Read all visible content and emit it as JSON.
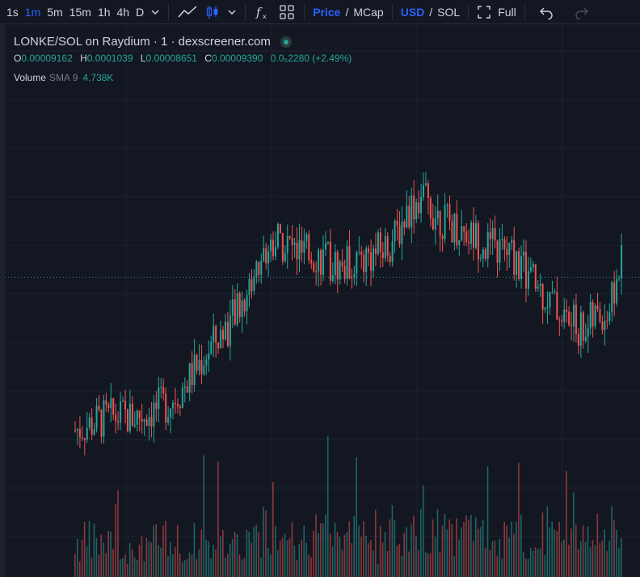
{
  "toolbar": {
    "intervals": [
      "1s",
      "1m",
      "5m",
      "15m",
      "1h",
      "4h",
      "D"
    ],
    "active_interval": "1m",
    "price_label": "Price",
    "mcap_label": "MCap",
    "usd_label": "USD",
    "sol_label": "SOL",
    "full_label": "Full"
  },
  "legend": {
    "title": "LONKE/SOL on Raydium · 1 · dexscreener.com",
    "open_key": "O",
    "open": "0.00009162",
    "high_key": "H",
    "high": "0.0001039",
    "low_key": "L",
    "low": "0.00008651",
    "close_key": "C",
    "close": "0.00009390",
    "change": "0.0₅2280 (+2.49%)"
  },
  "volume": {
    "label": "Volume",
    "sma": "SMA 9",
    "value": "4.738K"
  },
  "colors": {
    "up": "#26a69a",
    "down": "#ef5350",
    "background": "#131722",
    "accent": "#2962ff"
  },
  "chart_data": {
    "type": "candlestick",
    "series": [
      {
        "name": "LONKE/SOL",
        "values": [
          7.56e-05,
          7.62e-05,
          7.68e-05,
          7.71e-05,
          7.7e-05,
          7.73e-05,
          7.79e-05,
          7.86e-05,
          8.01e-05,
          8.22e-05,
          8.44e-05,
          8.62e-05,
          8.8e-05,
          9.11e-05,
          9.42e-05,
          9.68e-05,
          9.58e-05,
          9.47e-05,
          9.49e-05,
          9.4e-05,
          9.34e-05,
          9.41e-05,
          9.47e-05,
          9.52e-05,
          9.66e-05,
          9.98e-05,
          0.0001012,
          9.94e-05,
          9.81e-05,
          9.76e-05,
          9.68e-05,
          9.56e-05,
          9.52e-05,
          9.44e-05,
          9.25e-05,
          9.08e-05,
          8.92e-05,
          8.75e-05,
          8.66e-05,
          8.78e-05,
          8.85e-05,
          9.39e-05
        ]
      }
    ]
  }
}
